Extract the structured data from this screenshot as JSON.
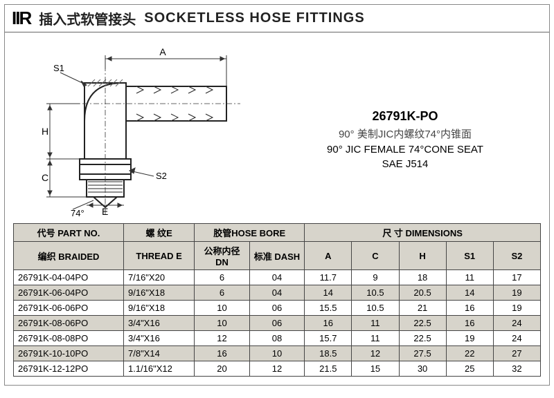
{
  "header": {
    "logo": "IIR",
    "title_cn": "插入式软管接头",
    "title_en": "SOCKETLESS HOSE FITTINGS"
  },
  "diagram": {
    "labels": {
      "A": "A",
      "H": "H",
      "C": "C",
      "E": "E",
      "S1": "S1",
      "S2": "S2",
      "angle": "74°"
    },
    "colors": {
      "stroke": "#222222",
      "hatch": "#666666",
      "dim": "#333333"
    }
  },
  "info": {
    "part_no": "26791K-PO",
    "desc_cn": "90° 美制JIC内螺纹74°内锥面",
    "desc_en1": "90° JIC FEMALE 74°CONE SEAT",
    "desc_en2": "SAE J514"
  },
  "table": {
    "headers": {
      "part_no": "代号 PART NO.",
      "thread": "螺 纹E",
      "hose_bore": "胶管HOSE BORE",
      "dimensions": "尺 寸 DIMENSIONS",
      "braided": "编织 BRAIDED",
      "thread_e": "THREAD E",
      "dn": "公称内径 DN",
      "dash": "标准 DASH",
      "A": "A",
      "C": "C",
      "H": "H",
      "S1": "S1",
      "S2": "S2"
    },
    "col_widths": [
      "140",
      "90",
      "70",
      "70",
      "60",
      "60",
      "60",
      "60",
      "60"
    ],
    "rows": [
      [
        "26791K-04-04PO",
        "7/16\"X20",
        "6",
        "04",
        "11.7",
        "9",
        "18",
        "11",
        "17"
      ],
      [
        "26791K-06-04PO",
        "9/16\"X18",
        "6",
        "04",
        "14",
        "10.5",
        "20.5",
        "14",
        "19"
      ],
      [
        "26791K-06-06PO",
        "9/16\"X18",
        "10",
        "06",
        "15.5",
        "10.5",
        "21",
        "16",
        "19"
      ],
      [
        "26791K-08-06PO",
        "3/4\"X16",
        "10",
        "06",
        "16",
        "11",
        "22.5",
        "16",
        "24"
      ],
      [
        "26791K-08-08PO",
        "3/4\"X16",
        "12",
        "08",
        "15.7",
        "11",
        "22.5",
        "19",
        "24"
      ],
      [
        "26791K-10-10PO",
        "7/8\"X14",
        "16",
        "10",
        "18.5",
        "12",
        "27.5",
        "22",
        "27"
      ],
      [
        "26791K-12-12PO",
        "1.1/16\"X12",
        "20",
        "12",
        "21.5",
        "15",
        "30",
        "25",
        "32"
      ]
    ]
  }
}
